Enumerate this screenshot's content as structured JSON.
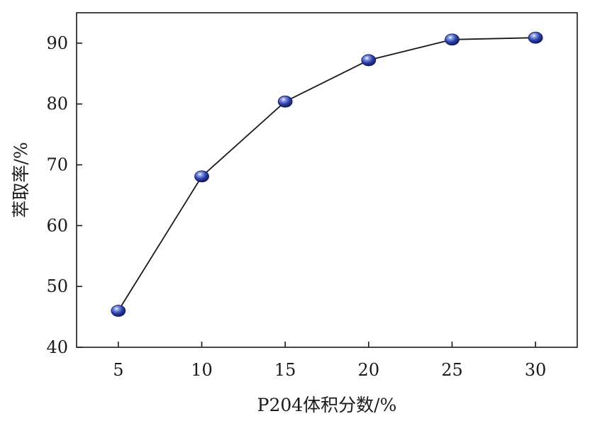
{
  "chart_data": {
    "type": "line",
    "title": "",
    "xlabel": "P204体积分数/%",
    "ylabel": "萃取率/%",
    "x": [
      5,
      10,
      15,
      20,
      25,
      30
    ],
    "series": [
      {
        "values": [
          46.0,
          68.1,
          80.4,
          87.2,
          90.6,
          90.9
        ]
      }
    ],
    "xlim": [
      2.5,
      32.5
    ],
    "ylim": [
      40,
      95
    ],
    "x_ticks": [
      "5",
      "10",
      "15",
      "20",
      "25",
      "30"
    ],
    "y_ticks": [
      "40",
      "50",
      "60",
      "70",
      "80",
      "90"
    ],
    "grid": false,
    "colors": {
      "line": "#1a1a1a",
      "marker": "#2b3fa6",
      "axis": "#1a1a1a"
    }
  }
}
